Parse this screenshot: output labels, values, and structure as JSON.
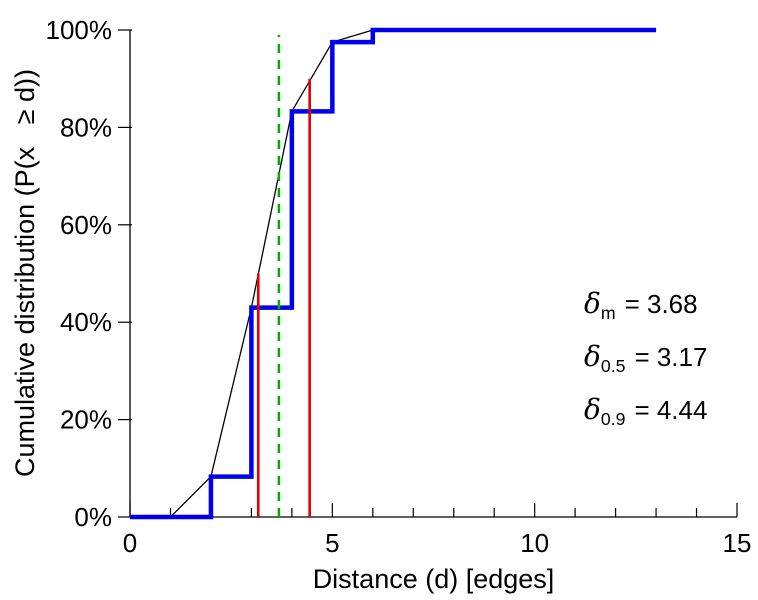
{
  "chart_data": {
    "type": "line",
    "title": "",
    "xlabel": "Distance (d) [edges]",
    "ylabel": "Cumulative distribution (P(x   ≥ d))",
    "xlim": [
      0,
      15
    ],
    "ylim": [
      0,
      100
    ],
    "x_major_ticks": [
      0,
      5,
      10,
      15
    ],
    "x_minor_ticks": [
      1,
      2,
      3,
      4,
      6,
      7,
      8,
      9,
      11,
      12,
      13,
      14
    ],
    "y_ticks": [
      0,
      20,
      40,
      60,
      80,
      100
    ],
    "y_tick_labels": [
      "0%",
      "20%",
      "40%",
      "60%",
      "80%",
      "100%"
    ],
    "grid": false,
    "legend": "none",
    "series": [
      {
        "name": "empirical-cdf-step",
        "type": "step",
        "color": "#0000ee",
        "width": 4.5,
        "points": [
          [
            0,
            0
          ],
          [
            2,
            0
          ],
          [
            2,
            8.3
          ],
          [
            3,
            8.3
          ],
          [
            3,
            43
          ],
          [
            4,
            43
          ],
          [
            4,
            83.3
          ],
          [
            5,
            83.3
          ],
          [
            5,
            97.5
          ],
          [
            6,
            97.5
          ],
          [
            6,
            100
          ],
          [
            13,
            100
          ]
        ]
      },
      {
        "name": "interpolated-cdf",
        "type": "line",
        "color": "#000000",
        "width": 1.3,
        "points": [
          [
            1,
            0
          ],
          [
            2,
            8.3
          ],
          [
            3,
            43
          ],
          [
            4,
            83.3
          ],
          [
            5,
            97.5
          ],
          [
            6,
            100
          ],
          [
            13,
            100
          ]
        ]
      }
    ],
    "vlines": [
      {
        "name": "mean-line",
        "x": 3.68,
        "y0": 0,
        "y1": 99,
        "color": "#00b200",
        "width": 2.6,
        "dash": "9 7"
      },
      {
        "name": "median-line",
        "x": 3.17,
        "y0": 0,
        "y1": 50,
        "color": "#e00000",
        "width": 2.6,
        "dash": ""
      },
      {
        "name": "p90-line",
        "x": 4.44,
        "y0": 0,
        "y1": 90,
        "color": "#e00000",
        "width": 2.6,
        "dash": ""
      }
    ],
    "annotations": [
      {
        "symbol": "δ",
        "sub": "m",
        "value": "= 3.68"
      },
      {
        "symbol": "δ",
        "sub": "0.5",
        "value": "= 3.17"
      },
      {
        "symbol": "δ",
        "sub": "0.9",
        "value": "= 4.44"
      }
    ]
  }
}
